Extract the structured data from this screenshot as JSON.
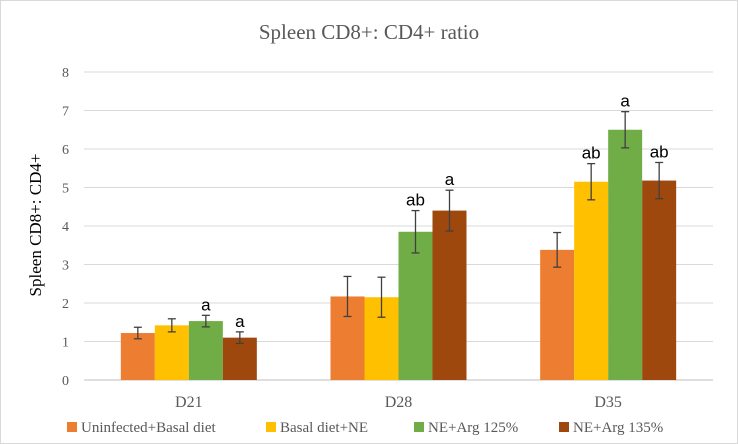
{
  "chart_data": {
    "type": "bar",
    "title": "Spleen CD8+: CD4+ ratio",
    "xlabel": "",
    "ylabel": "Spleen CD8+: CD4+",
    "ylim": [
      0,
      8
    ],
    "yticks": [
      0,
      1,
      2,
      3,
      4,
      5,
      6,
      7,
      8
    ],
    "grid": true,
    "legend_position": "bottom",
    "categories": [
      "D21",
      "D28",
      "D35"
    ],
    "series": [
      {
        "name": "Uninfected+Basal diet",
        "color": "#ED7D31",
        "values": [
          1.22,
          2.17,
          3.38
        ],
        "errors": [
          0.15,
          0.52,
          0.45
        ],
        "labels": [
          "",
          "",
          ""
        ]
      },
      {
        "name": "Basal diet+NE",
        "color": "#FFC000",
        "values": [
          1.42,
          2.15,
          5.15
        ],
        "errors": [
          0.17,
          0.52,
          0.47
        ],
        "labels": [
          "",
          "",
          "ab"
        ]
      },
      {
        "name": "NE+Arg 125%",
        "color": "#70AD47",
        "values": [
          1.53,
          3.85,
          6.5
        ],
        "errors": [
          0.15,
          0.55,
          0.47
        ],
        "labels": [
          "a",
          "ab",
          "a"
        ]
      },
      {
        "name": "NE+Arg 135%",
        "color": "#9E480E",
        "values": [
          1.1,
          4.4,
          5.18
        ],
        "errors": [
          0.15,
          0.53,
          0.47
        ],
        "labels": [
          "a",
          "a",
          "ab"
        ]
      }
    ]
  }
}
